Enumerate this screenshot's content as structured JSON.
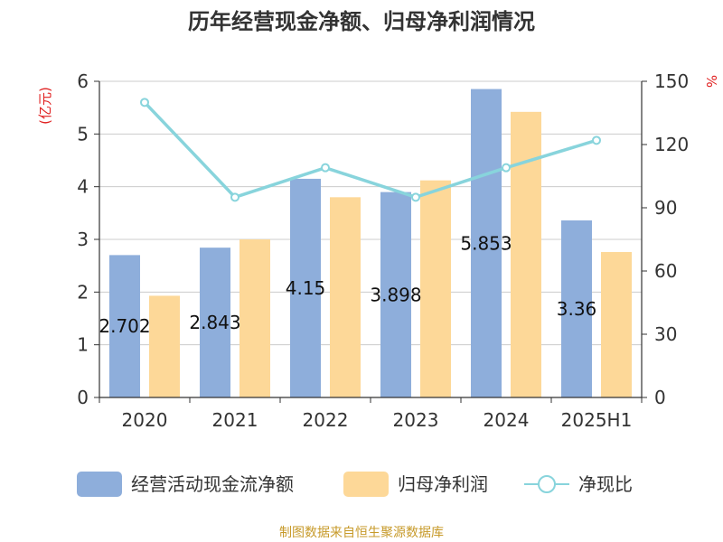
{
  "chart_data": {
    "type": "bar",
    "title": "历年经营现金净额、归母净利润情况",
    "left_unit": "(亿元)",
    "right_unit": "%",
    "categories": [
      "2020",
      "2021",
      "2022",
      "2023",
      "2024",
      "2025H1"
    ],
    "series": [
      {
        "name": "经营活动现金流净额",
        "type": "bar",
        "axis": "left",
        "color": "#8eaedb",
        "values": [
          2.702,
          2.843,
          4.15,
          3.898,
          5.853,
          3.36
        ],
        "labels": [
          "2.702",
          "2.843",
          "4.15",
          "3.898",
          "5.853",
          "3.36"
        ]
      },
      {
        "name": "归母净利润",
        "type": "bar",
        "axis": "left",
        "color": "#fdd898",
        "values": [
          1.93,
          3.0,
          3.8,
          4.12,
          5.42,
          2.76
        ]
      },
      {
        "name": "净现比",
        "type": "line",
        "axis": "right",
        "color": "#88d4dc",
        "values": [
          140,
          95,
          109,
          95,
          109,
          122
        ]
      }
    ],
    "left_axis": {
      "min": 0,
      "max": 6,
      "ticks": [
        "0",
        "1",
        "2",
        "3",
        "4",
        "5",
        "6"
      ]
    },
    "right_axis": {
      "min": 0,
      "max": 150,
      "ticks": [
        "0",
        "30",
        "60",
        "90",
        "120",
        "150"
      ]
    },
    "grid": true,
    "legend_position": "bottom",
    "source": "制图数据来自恒生聚源数据库"
  }
}
